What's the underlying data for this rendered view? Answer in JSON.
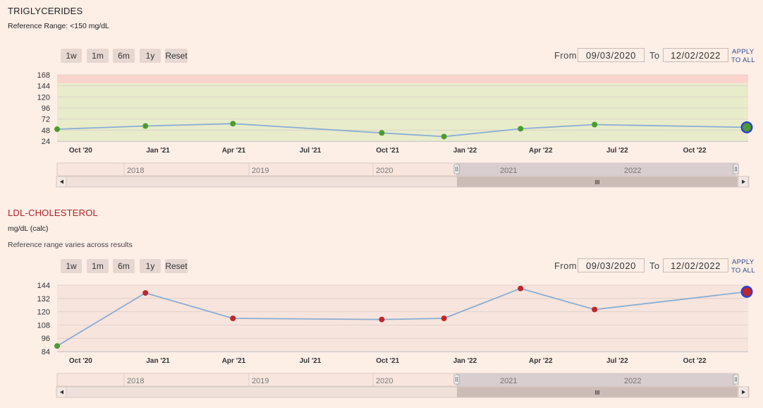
{
  "panels": [
    {
      "title": "TRIGLYCERIDES",
      "title_color": "#222222",
      "subtitles": [
        "Reference Range:  <150 mg/dL"
      ],
      "zoom_buttons": [
        "1w",
        "1m",
        "6m",
        "1y",
        "Reset"
      ],
      "from_label": "From",
      "from_value": "09/03/2020",
      "to_label": "To",
      "to_value": "12/02/2022",
      "apply_line1": "APPLY",
      "apply_line2": "TO ALL",
      "navigator_years": [
        "2018",
        "2019",
        "2020",
        "2021",
        "2022"
      ],
      "navigator_grip": "III"
    },
    {
      "title": "LDL-CHOLESTEROL",
      "title_color": "#b22222",
      "subtitles": [
        "mg/dL (calc)",
        "Reference range varies across results"
      ],
      "zoom_buttons": [
        "1w",
        "1m",
        "6m",
        "1y",
        "Reset"
      ],
      "from_label": "From",
      "from_value": "09/03/2020",
      "to_label": "To",
      "to_value": "12/02/2022",
      "apply_line1": "APPLY",
      "apply_line2": "TO ALL",
      "navigator_years": [
        "2018",
        "2019",
        "2020",
        "2021",
        "2022"
      ],
      "navigator_grip": "III"
    }
  ],
  "colors": {
    "line": "#8aaed4",
    "normal_point": "#4a9c2e",
    "high_point": "#c0262a",
    "highlight_ring": "#2f3fd0",
    "band_normal": "#e8eccb",
    "band_high": "#fad3cc",
    "band_neutral": "#f7e4dc"
  },
  "chart_data": [
    {
      "type": "line",
      "title": "TRIGLYCERIDES",
      "x_tick_labels": [
        "Oct '20",
        "Jan '21",
        "Apr '21",
        "Jul '21",
        "Oct '21",
        "Jan '22",
        "Apr '22",
        "Jul '22",
        "Oct '22"
      ],
      "x_range": [
        "2020-09-03",
        "2022-12-02"
      ],
      "y_ticks": [
        24,
        48,
        72,
        96,
        120,
        144,
        168
      ],
      "ylim": [
        24,
        168
      ],
      "reference_bands": [
        {
          "from": 24,
          "to": 150,
          "status": "normal",
          "color": "#e8eccb"
        },
        {
          "from": 150,
          "to": 168,
          "status": "high",
          "color": "#fad3cc"
        }
      ],
      "series": [
        {
          "points": [
            {
              "date": "2020-09-03",
              "y": 50,
              "status": "normal"
            },
            {
              "date": "2020-12-17",
              "y": 57,
              "status": "normal"
            },
            {
              "date": "2021-03-31",
              "y": 62,
              "status": "normal"
            },
            {
              "date": "2021-09-24",
              "y": 42,
              "status": "normal"
            },
            {
              "date": "2021-12-07",
              "y": 34,
              "status": "normal"
            },
            {
              "date": "2022-03-08",
              "y": 51,
              "status": "normal"
            },
            {
              "date": "2022-06-04",
              "y": 60,
              "status": "normal"
            },
            {
              "date": "2022-12-02",
              "y": 54,
              "status": "normal",
              "highlighted": true
            }
          ]
        }
      ]
    },
    {
      "type": "line",
      "title": "LDL-CHOLESTEROL",
      "x_tick_labels": [
        "Oct '20",
        "Jan '21",
        "Apr '21",
        "Jul '21",
        "Oct '21",
        "Jan '22",
        "Apr '22",
        "Jul '22",
        "Oct '22"
      ],
      "x_range": [
        "2020-09-03",
        "2022-12-02"
      ],
      "y_ticks": [
        84,
        96,
        108,
        120,
        132,
        144
      ],
      "ylim": [
        84,
        144
      ],
      "reference_bands": [
        {
          "from": 84,
          "to": 144,
          "status": "varies",
          "color": "#f7e4dc"
        }
      ],
      "series": [
        {
          "points": [
            {
              "date": "2020-09-03",
              "y": 89,
              "status": "normal"
            },
            {
              "date": "2020-12-17",
              "y": 137,
              "status": "high"
            },
            {
              "date": "2021-03-31",
              "y": 114,
              "status": "high"
            },
            {
              "date": "2021-09-24",
              "y": 113,
              "status": "high"
            },
            {
              "date": "2021-12-07",
              "y": 114,
              "status": "high"
            },
            {
              "date": "2022-03-08",
              "y": 141,
              "status": "high"
            },
            {
              "date": "2022-06-04",
              "y": 122,
              "status": "high"
            },
            {
              "date": "2022-12-02",
              "y": 138,
              "status": "high",
              "highlighted": true
            }
          ]
        }
      ]
    }
  ]
}
